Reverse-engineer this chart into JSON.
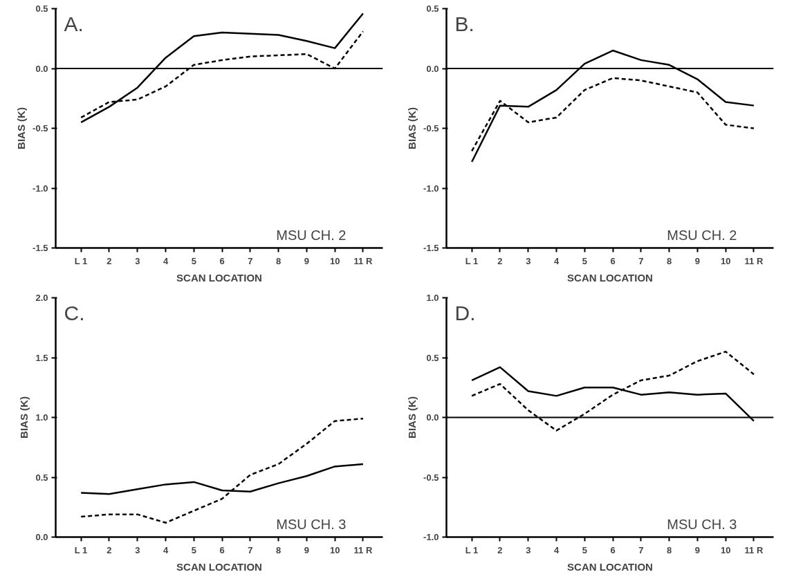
{
  "chart_data": [
    {
      "type": "line",
      "title": "A.",
      "xlabel": "SCAN LOCATION",
      "ylabel": "BIAS (K)",
      "categories": [
        "L 1",
        "2",
        "3",
        "4",
        "5",
        "6",
        "7",
        "8",
        "9",
        "10",
        "11 R"
      ],
      "series": [
        {
          "color": "#000000",
          "line_style": "solid",
          "values": [
            -0.45,
            -0.32,
            -0.16,
            0.09,
            0.27,
            0.3,
            0.29,
            0.28,
            0.23,
            0.17,
            0.46
          ]
        },
        {
          "color": "#000000",
          "line_style": "dashed",
          "values": [
            -0.41,
            -0.28,
            -0.26,
            -0.15,
            0.03,
            0.07,
            0.1,
            0.11,
            0.12,
            0.0,
            0.31
          ]
        }
      ],
      "ylim": [
        -1.5,
        0.5
      ],
      "yticks": [
        0.5,
        {
          "value": 0,
          "label": "0.0"
        },
        -0.5,
        {
          "value": -1,
          "label": "-1.0"
        },
        -1.5
      ],
      "ref_lines": [
        {
          "axis": "y",
          "value": 0
        }
      ],
      "annotations": [
        "MSU CH. 2"
      ],
      "grid": false
    },
    {
      "type": "line",
      "title": "B.",
      "xlabel": "SCAN LOCATION",
      "ylabel": "BIAS (K)",
      "categories": [
        "L 1",
        "2",
        "3",
        "4",
        "5",
        "6",
        "7",
        "8",
        "9",
        "10",
        "11 R"
      ],
      "series": [
        {
          "color": "#000000",
          "line_style": "solid",
          "values": [
            -0.78,
            -0.31,
            -0.32,
            -0.18,
            0.04,
            0.15,
            0.07,
            0.03,
            -0.09,
            -0.28,
            -0.31
          ]
        },
        {
          "color": "#000000",
          "line_style": "dashed",
          "values": [
            -0.69,
            -0.27,
            -0.45,
            -0.41,
            -0.18,
            -0.08,
            -0.1,
            -0.15,
            -0.2,
            -0.47,
            -0.5
          ]
        }
      ],
      "ylim": [
        -1.5,
        0.5
      ],
      "yticks": [
        0.5,
        {
          "value": 0,
          "label": "0.0"
        },
        -0.5,
        {
          "value": -1,
          "label": "-1.0"
        },
        -1.5
      ],
      "ref_lines": [
        {
          "axis": "y",
          "value": 0
        }
      ],
      "annotations": [
        "MSU CH. 2"
      ],
      "grid": false
    },
    {
      "type": "line",
      "title": "C.",
      "xlabel": "SCAN LOCATION",
      "ylabel": "BIAS (K)",
      "categories": [
        "L 1",
        "2",
        "3",
        "4",
        "5",
        "6",
        "7",
        "8",
        "9",
        "10",
        "11 R"
      ],
      "series": [
        {
          "color": "#000000",
          "line_style": "solid",
          "values": [
            0.37,
            0.36,
            0.4,
            0.44,
            0.46,
            0.39,
            0.38,
            0.45,
            0.51,
            0.59,
            0.61
          ]
        },
        {
          "color": "#000000",
          "line_style": "dashed",
          "values": [
            0.17,
            0.19,
            0.19,
            0.12,
            0.22,
            0.32,
            0.52,
            0.61,
            0.78,
            0.97,
            0.99
          ]
        }
      ],
      "ylim": [
        0,
        2
      ],
      "yticks": [
        {
          "value": 2,
          "label": "2.0"
        },
        1.5,
        {
          "value": 1,
          "label": "1.0"
        },
        0.5,
        {
          "value": 0,
          "label": "0.0"
        }
      ],
      "annotations": [
        "MSU CH. 3"
      ],
      "grid": false
    },
    {
      "type": "line",
      "title": "D.",
      "xlabel": "SCAN LOCATION",
      "ylabel": "BIAS (K)",
      "categories": [
        "L 1",
        "2",
        "3",
        "4",
        "5",
        "6",
        "7",
        "8",
        "9",
        "10",
        "11 R"
      ],
      "series": [
        {
          "color": "#000000",
          "line_style": "solid",
          "values": [
            0.31,
            0.42,
            0.22,
            0.18,
            0.25,
            0.25,
            0.19,
            0.21,
            0.19,
            0.2,
            -0.03
          ]
        },
        {
          "color": "#000000",
          "line_style": "dashed",
          "values": [
            0.18,
            0.28,
            0.06,
            -0.11,
            0.03,
            0.19,
            0.31,
            0.35,
            0.47,
            0.55,
            0.36
          ]
        }
      ],
      "ylim": [
        -1,
        1
      ],
      "yticks": [
        {
          "value": 1,
          "label": "1.0"
        },
        0.5,
        {
          "value": 0,
          "label": "0.0"
        },
        -0.5,
        {
          "value": -1,
          "label": "-1.0"
        }
      ],
      "ref_lines": [
        {
          "axis": "y",
          "value": 0
        }
      ],
      "annotations": [
        "MSU CH. 3"
      ],
      "grid": false
    }
  ]
}
